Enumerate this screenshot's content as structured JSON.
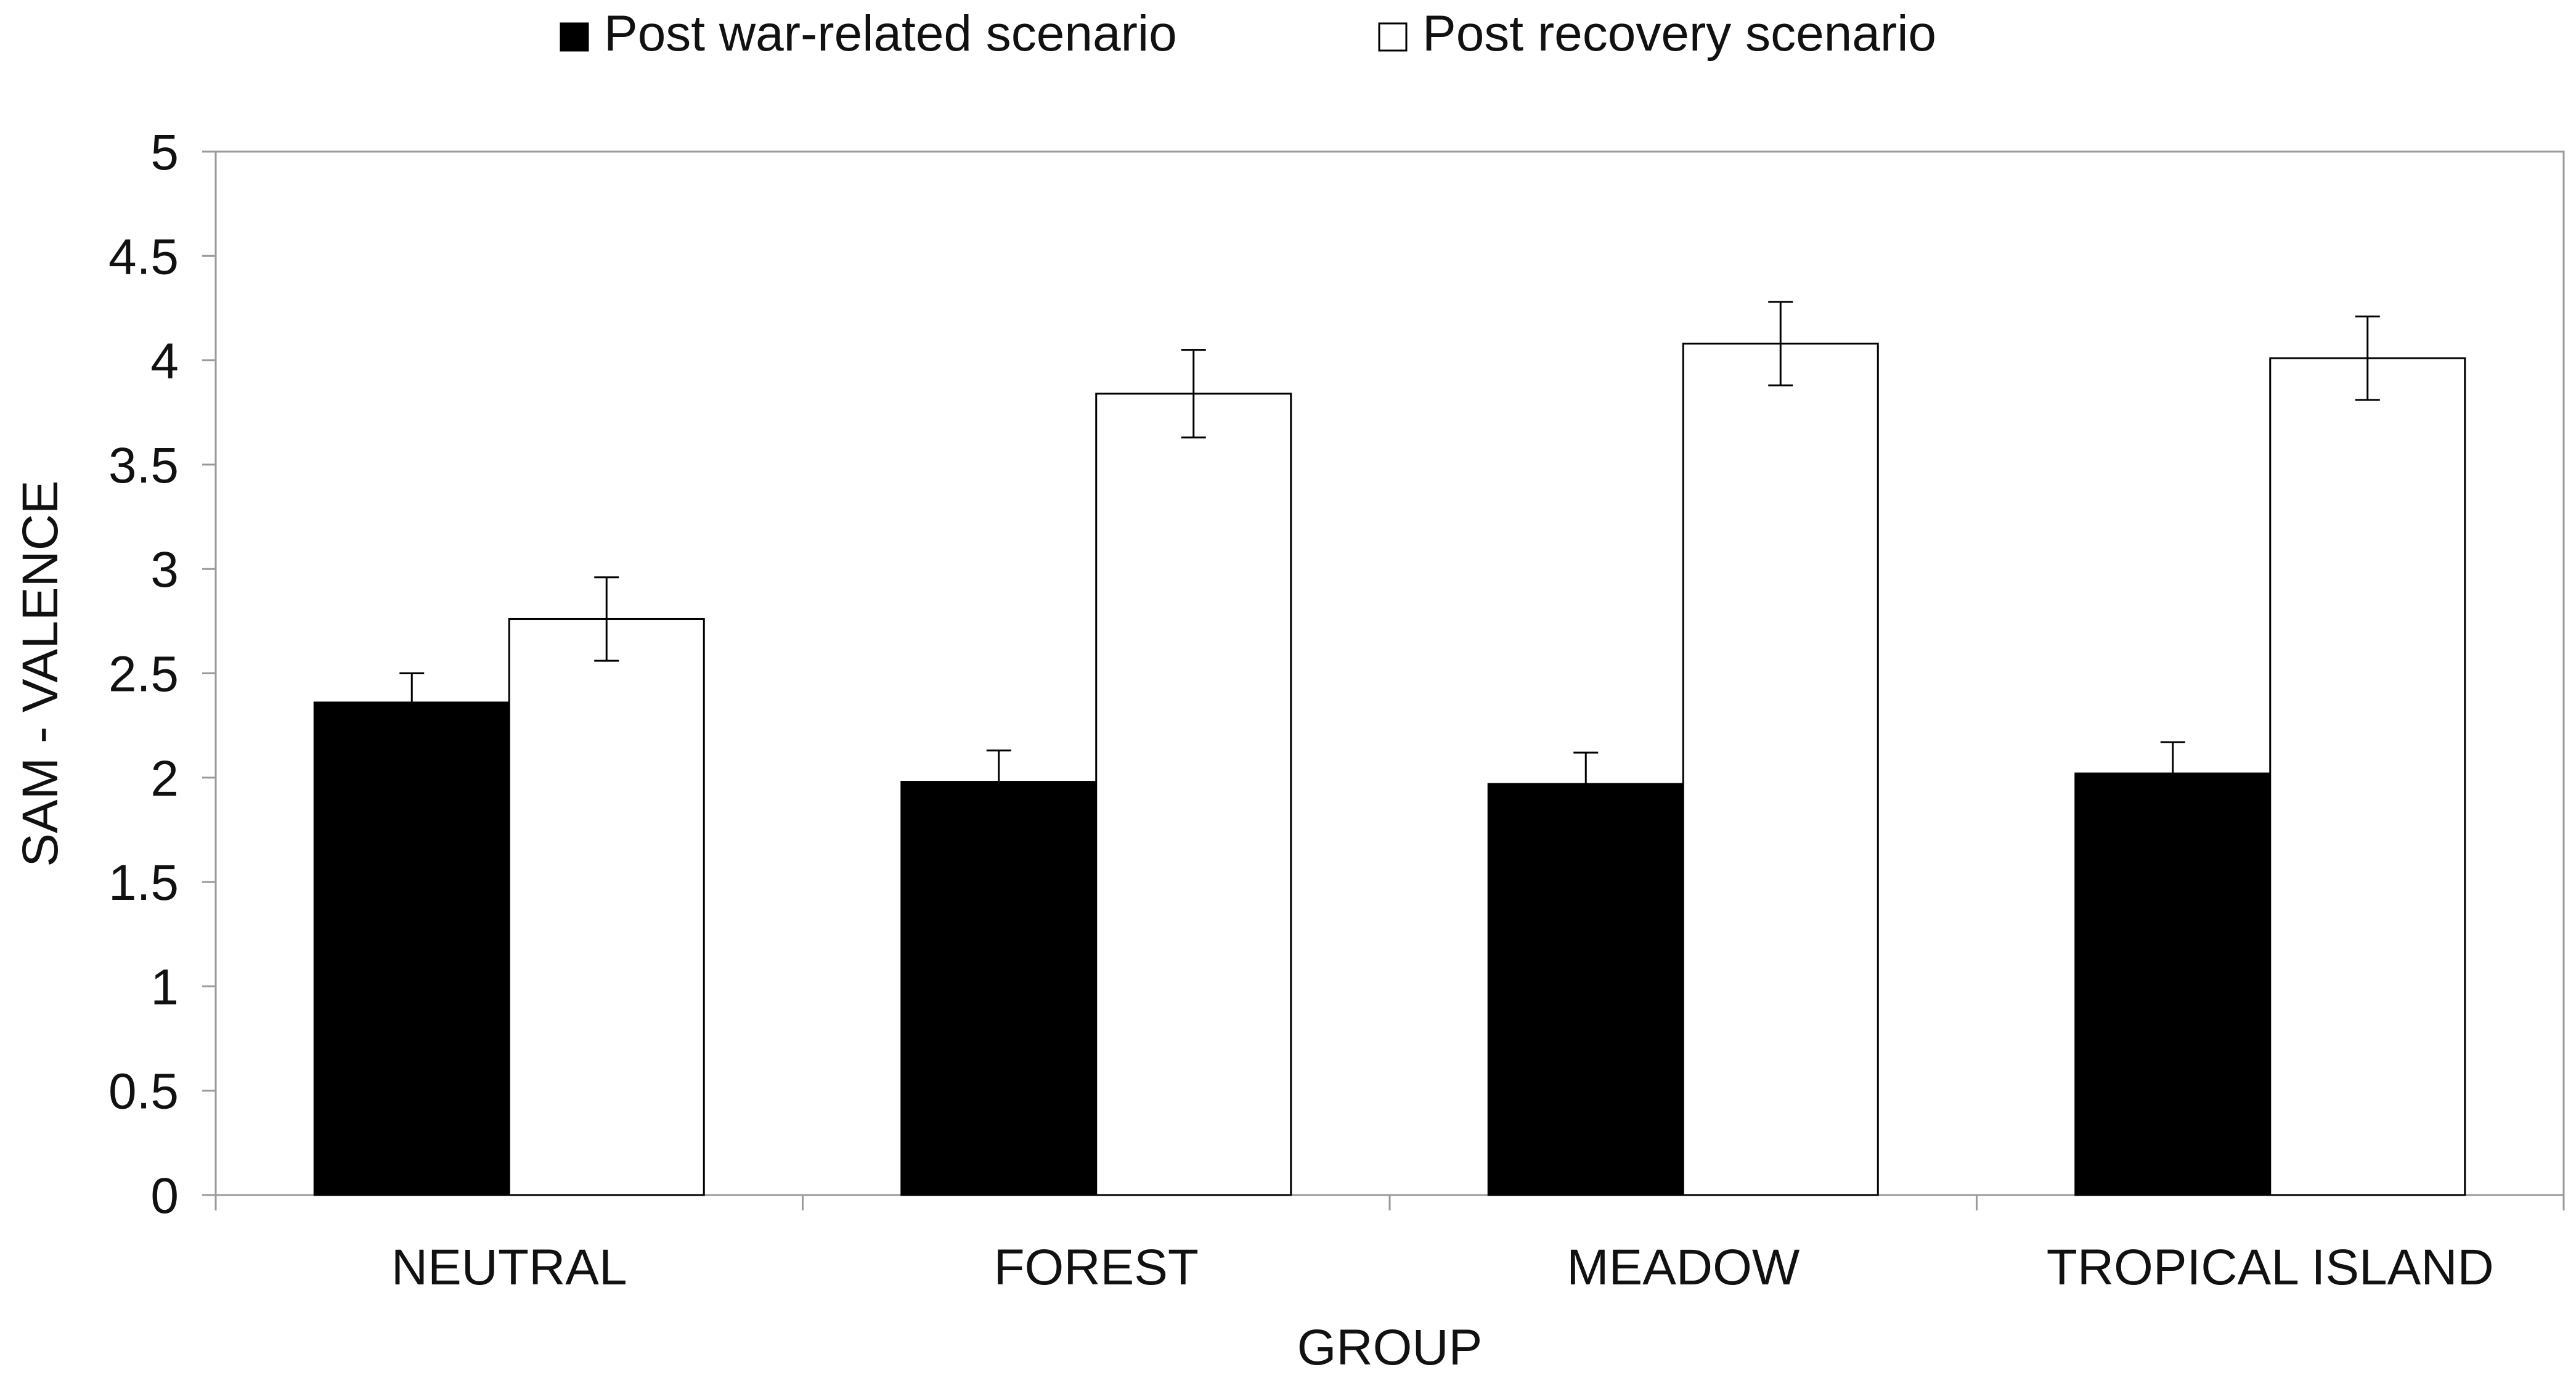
{
  "chart_data": {
    "type": "bar",
    "title": "",
    "xlabel": "GROUP",
    "ylabel": "SAM - VALENCE",
    "ylim": [
      0,
      5
    ],
    "yticks": [
      0,
      0.5,
      1,
      1.5,
      2,
      2.5,
      3,
      3.5,
      4,
      4.5,
      5
    ],
    "ytick_labels": [
      "0",
      "0.5",
      "1",
      "1.5",
      "2",
      "2.5",
      "3",
      "3.5",
      "4",
      "4.5",
      "5"
    ],
    "grid": false,
    "legend_position": "top-center",
    "categories": [
      "NEUTRAL",
      "FOREST",
      "MEADOW",
      "TROPICAL ISLAND"
    ],
    "series": [
      {
        "name": "Post war-related scenario",
        "color": "#000000",
        "values": [
          2.36,
          1.98,
          1.97,
          2.02
        ],
        "errors": [
          0.14,
          0.15,
          0.15,
          0.15
        ]
      },
      {
        "name": "Post recovery scenario",
        "color": "#ffffff",
        "values": [
          2.76,
          3.84,
          4.08,
          4.01
        ],
        "errors": [
          0.2,
          0.21,
          0.2,
          0.2
        ]
      }
    ]
  }
}
